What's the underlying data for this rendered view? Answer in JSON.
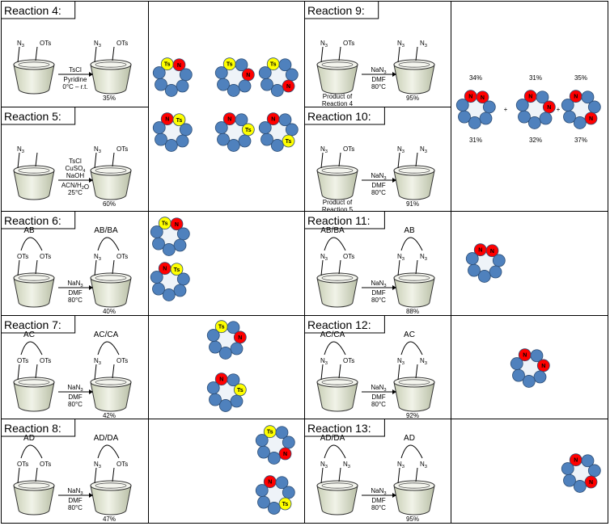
{
  "colors": {
    "glucose": "#4f81bd",
    "glucose_stroke": "#2c4d75",
    "tosyl": "#ffff00",
    "azide": "#ff0000",
    "ring_fill": "#eef3f8",
    "cup_fill": "#e8ecdc",
    "border": "#000000"
  },
  "reactions": [
    {
      "label": "Reaction 4:",
      "reagents": [
        "TsCl",
        "Pyridine",
        "0°C – r.t."
      ],
      "yield": "35%",
      "start": [
        "N3",
        "OTs"
      ],
      "product": [
        "N3",
        "OTs"
      ],
      "caption": [],
      "top": "",
      "top_p": ""
    },
    {
      "label": "Reaction 5:",
      "reagents": [
        "TsCl",
        "CuSO4",
        "NaOH",
        "ACN/H2O",
        "25°C"
      ],
      "yield": "60%",
      "start": [
        "N3",
        ""
      ],
      "product": [
        "N3",
        "OTs"
      ],
      "caption": [],
      "top": "",
      "top_p": ""
    },
    {
      "label": "Reaction 6:",
      "reagents": [
        "NaN3",
        "DMF",
        "80°C"
      ],
      "yield": "40%",
      "start": [
        "OTs",
        "OTs"
      ],
      "product": [
        "N3",
        "OTs"
      ],
      "caption": [],
      "top": "AB",
      "top_p": "AB/BA"
    },
    {
      "label": "Reaction 7:",
      "reagents": [
        "NaN3",
        "DMF",
        "80°C"
      ],
      "yield": "42%",
      "start": [
        "OTs",
        "OTs"
      ],
      "product": [
        "N3",
        "OTs"
      ],
      "caption": [],
      "top": "AC",
      "top_p": "AC/CA"
    },
    {
      "label": "Reaction 8:",
      "reagents": [
        "NaN3",
        "DMF",
        "80°C"
      ],
      "yield": "47%",
      "start": [
        "OTs",
        "OTs"
      ],
      "product": [
        "N3",
        "OTs"
      ],
      "caption": [],
      "top": "AD",
      "top_p": "AD/DA"
    },
    {
      "label": "Reaction 9:",
      "reagents": [
        "NaN3",
        "DMF",
        "80°C"
      ],
      "yield": "95%",
      "start": [
        "N3",
        "OTs"
      ],
      "product": [
        "N3",
        "N3"
      ],
      "caption": [
        "Product of",
        "Reaction 4"
      ],
      "top": "",
      "top_p": ""
    },
    {
      "label": "Reaction 10:",
      "reagents": [
        "NaN3",
        "DMF",
        "80°C"
      ],
      "yield": "91%",
      "start": [
        "N3",
        "OTs"
      ],
      "product": [
        "N3",
        "N3"
      ],
      "caption": [
        "Product of",
        "Reaction 5"
      ],
      "top": "",
      "top_p": ""
    },
    {
      "label": "Reaction 11:",
      "reagents": [
        "NaN3",
        "DMF",
        "80°C"
      ],
      "yield": "88%",
      "start": [
        "N3",
        "OTs"
      ],
      "product": [
        "N3",
        "N3"
      ],
      "caption": [],
      "top": "AB/BA",
      "top_p": "AB"
    },
    {
      "label": "Reaction 12:",
      "reagents": [
        "NaN3",
        "DMF",
        "80°C"
      ],
      "yield": "92%",
      "start": [
        "N3",
        "OTs"
      ],
      "product": [
        "N3",
        "N3"
      ],
      "caption": [],
      "top": "AC/CA",
      "top_p": "AC"
    },
    {
      "label": "Reaction 13:",
      "reagents": [
        "NaN3",
        "DMF",
        "80°C"
      ],
      "yield": "95%",
      "start": [
        "N3",
        "N3"
      ],
      "product": [
        "N3",
        "N3"
      ],
      "caption": [],
      "top": "AD/DA",
      "top_p": "AD"
    }
  ],
  "rings": {
    "r4_5": [
      {
        "subs": [
          [
            "Ts",
            0
          ],
          [
            "N3",
            1
          ]
        ]
      },
      {
        "subs": [
          [
            "Ts",
            0
          ],
          [
            "N3",
            2
          ]
        ]
      },
      {
        "subs": [
          [
            "Ts",
            0
          ],
          [
            "N3",
            3
          ]
        ]
      },
      {
        "subs": [
          [
            "N3",
            0
          ],
          [
            "Ts",
            1
          ]
        ]
      },
      {
        "subs": [
          [
            "N3",
            0
          ],
          [
            "Ts",
            2
          ]
        ]
      },
      {
        "subs": [
          [
            "N3",
            0
          ],
          [
            "Ts",
            3
          ]
        ]
      }
    ],
    "r6": [
      {
        "subs": [
          [
            "Ts",
            0
          ],
          [
            "N3",
            1
          ]
        ]
      },
      {
        "subs": [
          [
            "N3",
            0
          ],
          [
            "Ts",
            1
          ]
        ]
      }
    ],
    "r7": [
      {
        "subs": [
          [
            "Ts",
            0
          ],
          [
            "N3",
            2
          ]
        ]
      },
      {
        "subs": [
          [
            "N3",
            0
          ],
          [
            "Ts",
            2
          ]
        ]
      }
    ],
    "r8": [
      {
        "subs": [
          [
            "Ts",
            0
          ],
          [
            "N3",
            3
          ]
        ]
      },
      {
        "subs": [
          [
            "N3",
            0
          ],
          [
            "Ts",
            3
          ]
        ]
      }
    ],
    "r9_10": [
      {
        "subs": [
          [
            "N3",
            0
          ],
          [
            "N3",
            1
          ]
        ],
        "top_pct": "34%",
        "bot_pct": "31%"
      },
      {
        "subs": [
          [
            "N3",
            0
          ],
          [
            "N3",
            2
          ]
        ],
        "top_pct": "31%",
        "bot_pct": "32%"
      },
      {
        "subs": [
          [
            "N3",
            0
          ],
          [
            "N3",
            3
          ]
        ],
        "top_pct": "35%",
        "bot_pct": "37%"
      }
    ],
    "r11": [
      {
        "subs": [
          [
            "N3",
            0
          ],
          [
            "N3",
            1
          ]
        ]
      }
    ],
    "r12": [
      {
        "subs": [
          [
            "N3",
            0
          ],
          [
            "N3",
            2
          ]
        ]
      }
    ],
    "r13": [
      {
        "subs": [
          [
            "N3",
            0
          ],
          [
            "N3",
            3
          ]
        ]
      }
    ]
  },
  "plus_sign": "+",
  "sub_labels": {
    "Ts": "Ts",
    "N3": "N"
  }
}
